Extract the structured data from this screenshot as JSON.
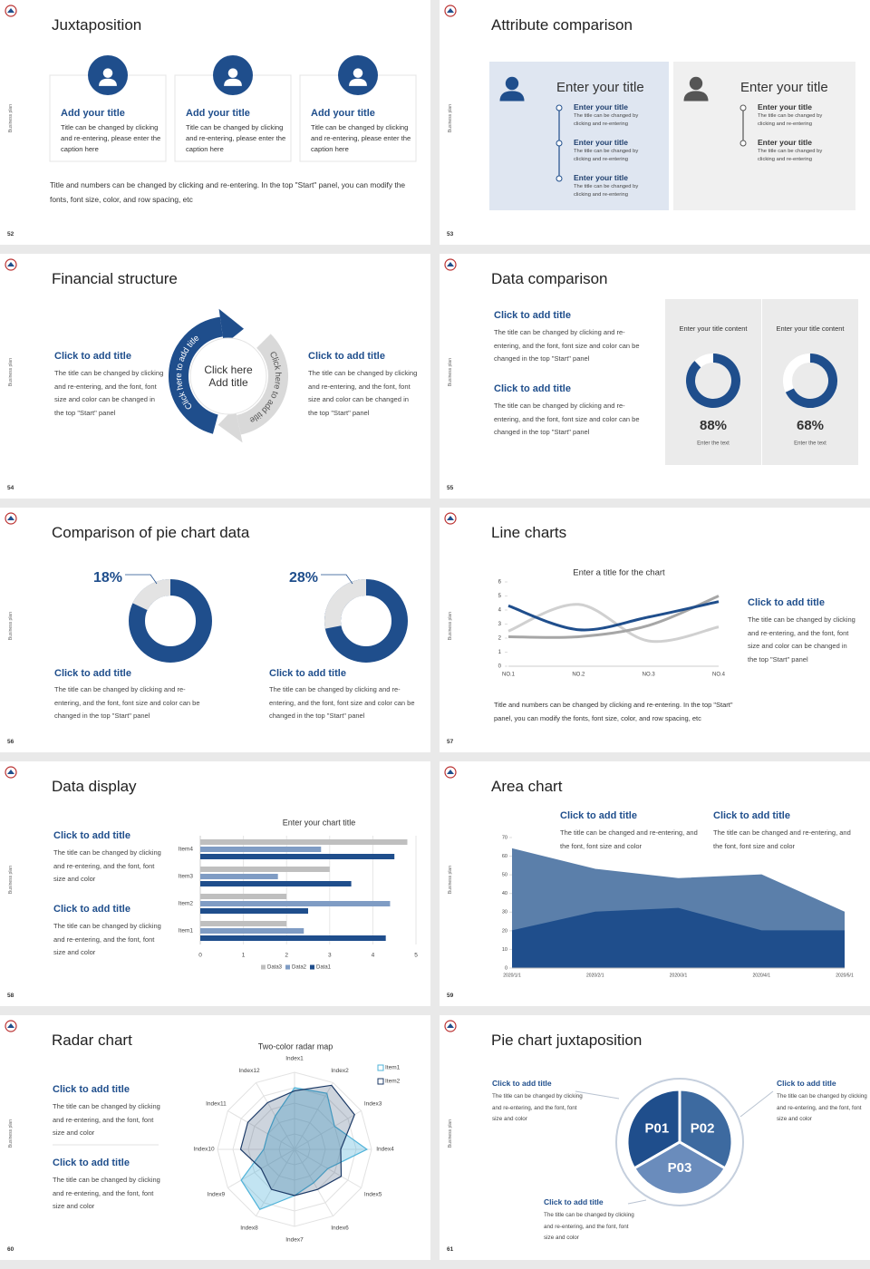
{
  "slides": [
    {
      "number": "52",
      "side": "Business plan",
      "title": "Juxtaposition",
      "cards": [
        {
          "title": "Add your title",
          "text": "Title can be changed by clicking and re-entering, please enter the caption here"
        },
        {
          "title": "Add your title",
          "text": "Title can be changed by clicking and re-entering, please enter the caption here"
        },
        {
          "title": "Add your title",
          "text": "Title can be changed by clicking and re-entering, please enter the caption here"
        }
      ],
      "note": "Title and numbers can be changed by clicking and re-entering. In the top \"Start\" panel, you can modify the fonts, font size, color, and row spacing, etc"
    },
    {
      "number": "53",
      "side": "Business plan",
      "title": "Attribute comparison",
      "panels": [
        {
          "title": "Enter your title",
          "items": [
            {
              "title": "Enter your title",
              "text": "The title can be changed by clicking and re-entering"
            },
            {
              "title": "Enter your title",
              "text": "The title can be changed by clicking and re-entering"
            },
            {
              "title": "Enter your title",
              "text": "The title can be changed by clicking and re-entering"
            }
          ]
        },
        {
          "title": "Enter your title",
          "items": [
            {
              "title": "Enter your title",
              "text": "The title can be changed by clicking and re-entering"
            },
            {
              "title": "Enter your title",
              "text": "The title can be changed by clicking and re-entering"
            }
          ]
        }
      ]
    },
    {
      "number": "54",
      "side": "Business plan",
      "title": "Financial structure",
      "blocks": [
        {
          "title": "Click to add title",
          "text": "The title can be changed by clicking and re-entering, and the font, font size and color can be changed in the top \"Start\" panel"
        },
        {
          "title": "Click to add title",
          "text": "The title can be changed by clicking and re-entering, and the font, font size and color can be changed in the top \"Start\" panel"
        }
      ],
      "center": [
        "Click here",
        "Add title"
      ],
      "arc_labels": [
        "Click here to add title",
        "Click here to add title"
      ]
    },
    {
      "number": "55",
      "side": "Business plan",
      "title": "Data comparison",
      "blocks": [
        {
          "title": "Click to add title",
          "text": "The title can be changed by clicking and re-entering, and the font, font size and color can be changed in the top \"Start\" panel"
        },
        {
          "title": "Click to add title",
          "text": "The title can be changed by clicking and re-entering, and the font, font size and color can be changed in the top \"Start\" panel"
        }
      ],
      "donuts": [
        {
          "heading": "Enter your title content",
          "value": 88,
          "value_label": "88%",
          "caption": "Enter the text",
          "color": "#1f4e8c"
        },
        {
          "heading": "Enter your title content",
          "value": 68,
          "value_label": "68%",
          "caption": "Enter the text",
          "color": "#1f4e8c"
        }
      ]
    },
    {
      "number": "56",
      "side": "Business plan",
      "title": "Comparison of pie chart data",
      "pies": [
        {
          "value": 18,
          "value_label": "18%",
          "color": "#e3e3e3",
          "title": "Click to add title",
          "text": "The title can be changed by clicking and re-entering, and the font, font size and color can be changed in the top \"Start\" panel"
        },
        {
          "value": 28,
          "value_label": "28%",
          "color": "#e3e3e3",
          "title": "Click to add title",
          "text": "The title can be changed by clicking and re-entering, and the font, font size and color can be changed in the top \"Start\" panel"
        }
      ]
    },
    {
      "number": "57",
      "side": "Business plan",
      "title": "Line charts",
      "chart": {
        "type": "line",
        "title": "Enter a title for the chart",
        "categories": [
          "NO.1",
          "NO.2",
          "NO.3",
          "NO.4"
        ],
        "ylim": [
          0,
          6
        ],
        "yticks": [
          0,
          1,
          2,
          3,
          4,
          5,
          6
        ],
        "series": [
          {
            "color": "#d0d0d0",
            "values": [
              2.5,
              4.4,
              1.8,
              2.8
            ]
          },
          {
            "color": "#a6a6a6",
            "values": [
              2.1,
              2.1,
              2.9,
              5
            ]
          },
          {
            "color": "#1f4e8c",
            "values": [
              4.3,
              2.6,
              3.5,
              4.6
            ]
          }
        ]
      },
      "block": {
        "title": "Click to add title",
        "text": "The title can be changed by clicking and re-entering, and the font, font size and color can be changed in the top \"Start\" panel"
      },
      "note": "Title and numbers can be changed by clicking and re-entering. In the top \"Start\" panel, you can modify the fonts, font size, color, and row spacing, etc"
    },
    {
      "number": "58",
      "side": "Business plan",
      "title": "Data display",
      "blocks": [
        {
          "title": "Click to add title",
          "text": "The title can be changed by clicking and re-entering, and the font, font size and color"
        },
        {
          "title": "Click to add title",
          "text": "The title can be changed by clicking and re-entering, and the font, font size and color"
        }
      ],
      "chart": {
        "type": "bar",
        "title": "Enter your chart title",
        "categories": [
          "Item1",
          "Item2",
          "Item3",
          "Item4"
        ],
        "xlim": [
          0,
          5
        ],
        "xticks": [
          0,
          1,
          2,
          3,
          4,
          5
        ],
        "series": [
          {
            "name": "Data3",
            "color": "#bfbfbf",
            "values": [
              2,
              2,
              3,
              4.8
            ]
          },
          {
            "name": "Data2",
            "color": "#7f9cc4",
            "values": [
              2.4,
              4.4,
              1.8,
              2.8
            ]
          },
          {
            "name": "Data1",
            "color": "#1f4e8c",
            "values": [
              4.3,
              2.5,
              3.5,
              4.5
            ]
          }
        ]
      }
    },
    {
      "number": "59",
      "side": "Business plan",
      "title": "Area chart",
      "blocks": [
        {
          "title": "Click to add title",
          "text": "The title can be changed and re-entering, and the font, font size and color"
        },
        {
          "title": "Click to add title",
          "text": "The title can be changed and re-entering, and the font, font size and color"
        }
      ],
      "chart": {
        "type": "area",
        "categories": [
          "2020/1/1",
          "2020/2/1",
          "2020/3/1",
          "2020/4/1",
          "2020/5/1"
        ],
        "ylim": [
          0,
          70
        ],
        "yticks": [
          0,
          10,
          20,
          30,
          40,
          50,
          60,
          70
        ],
        "series": [
          {
            "color": "#5b7faa",
            "values": [
              64,
              53,
              48,
              50,
              30
            ]
          },
          {
            "color": "#1f4e8c",
            "values": [
              20,
              30,
              32,
              20,
              20
            ]
          }
        ]
      }
    },
    {
      "number": "60",
      "side": "Business plan",
      "title": "Radar chart",
      "blocks": [
        {
          "title": "Click to add title",
          "text": "The title can be changed by clicking and re-entering, and the font, font size and color"
        },
        {
          "title": "Click to add title",
          "text": "The title can be changed by clicking and re-entering, and the font, font size and color"
        }
      ],
      "chart": {
        "type": "radar",
        "title": "Two-color radar map",
        "categories": [
          "Index1",
          "Index2",
          "Index3",
          "Index4",
          "Index5",
          "Index6",
          "Index7",
          "Index8",
          "Index9",
          "Index10",
          "Index11",
          "Index12"
        ],
        "rlim": [
          0,
          5
        ],
        "series": [
          {
            "name": "Item1",
            "color": "#4fb3d9",
            "values": [
              4,
              4.2,
              3,
              4.7,
              2.5,
              2.5,
              3,
              4.5,
              4,
              2,
              2,
              2.5
            ]
          },
          {
            "name": "Item2",
            "color": "#1c3a66",
            "values": [
              3.8,
              4.8,
              4.5,
              3,
              3.5,
              3,
              3,
              3,
              2.5,
              3.5,
              3.5,
              3.5
            ]
          }
        ]
      }
    },
    {
      "number": "61",
      "side": "Business plan",
      "title": "Pie chart juxtaposition",
      "segments": [
        "P01",
        "P02",
        "P03"
      ],
      "blocks": [
        {
          "title": "Click to add title",
          "text": "The title can be changed by clicking and re-entering, and the font, font size and color"
        },
        {
          "title": "Click to add title",
          "text": "The title can be changed by clicking and re-entering, and the font, font size and color"
        },
        {
          "title": "Click to add title",
          "text": "The title can be changed by clicking and re-entering, and the font, font size and color"
        }
      ]
    }
  ]
}
